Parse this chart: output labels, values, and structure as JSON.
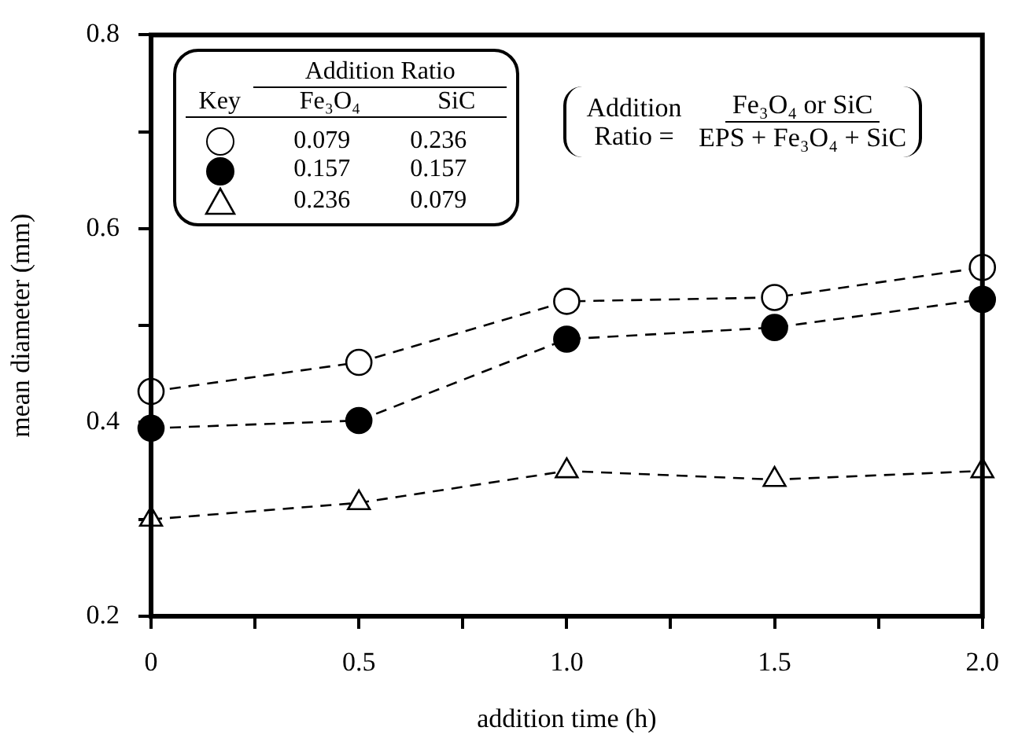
{
  "chart_data": {
    "type": "line",
    "xlabel": "addition time (h)",
    "ylabel": "mean diameter (mm)",
    "x": [
      0,
      0.5,
      1.0,
      1.5,
      2.0
    ],
    "xlim": [
      0,
      2.0
    ],
    "ylim": [
      0.2,
      0.8
    ],
    "xticks": [
      0,
      {
        "value": 0.25,
        "label": null
      },
      {
        "value": 0.5,
        "label": "0.5"
      },
      {
        "value": 0.75,
        "label": null
      },
      {
        "value": 1.0,
        "label": "1.0"
      },
      {
        "value": 1.25,
        "label": null
      },
      {
        "value": 1.5,
        "label": "1.5"
      },
      {
        "value": 1.75,
        "label": null
      },
      {
        "value": 2.0,
        "label": "2.0"
      }
    ],
    "yticks": [
      0.2,
      {
        "value": 0.3,
        "label": null
      },
      0.4,
      {
        "value": 0.5,
        "label": null
      },
      0.6,
      {
        "value": 0.7,
        "label": null
      },
      0.8
    ],
    "grid": false,
    "legend": "top left",
    "legend_title": "Addition Ratio",
    "line_style": "dashed",
    "series": [
      {
        "name": "0.079 0.236",
        "color": "#ffffff",
        "marker": "circle",
        "values": [
          0.432,
          0.462,
          0.525,
          0.529,
          0.56
        ]
      },
      {
        "name": "0.157 0.157",
        "color": "#000000",
        "marker": "circle",
        "values": [
          0.394,
          0.402,
          0.486,
          0.498,
          0.527
        ]
      },
      {
        "name": "0.236 0.079",
        "color": "#ffffff",
        "marker": "triangle",
        "values": [
          0.3,
          0.317,
          0.35,
          0.341,
          0.35
        ]
      }
    ],
    "annotations": [
      "Key",
      "Fe₃O₄",
      "SiC",
      "Addition Ratio =",
      "Fe₃O₄ or SiC",
      "EPS + Fe₃O₄ + SiC"
    ]
  }
}
